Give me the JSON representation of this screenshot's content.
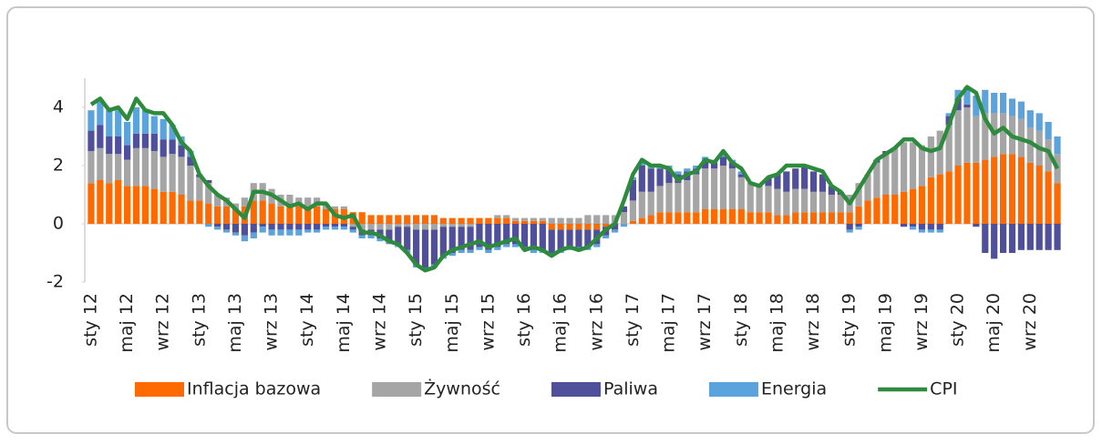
{
  "chart_data": {
    "type": "stacked-bar-line",
    "categories": [
      "sty 12",
      null,
      null,
      null,
      "maj 12",
      null,
      null,
      null,
      "wrz 12",
      null,
      null,
      null,
      "sty 13",
      null,
      null,
      null,
      "maj 13",
      null,
      null,
      null,
      "wrz 13",
      null,
      null,
      null,
      "sty 14",
      null,
      null,
      null,
      "maj 14",
      null,
      null,
      null,
      "wrz 14",
      null,
      null,
      null,
      "sty 15",
      null,
      null,
      null,
      "maj 15",
      null,
      null,
      null,
      "wrz 15",
      null,
      null,
      null,
      "sty 16",
      null,
      null,
      null,
      "maj 16",
      null,
      null,
      null,
      "wrz 16",
      null,
      null,
      null,
      "sty 17",
      null,
      null,
      null,
      "maj 17",
      null,
      null,
      null,
      "wrz 17",
      null,
      null,
      null,
      "sty 18",
      null,
      null,
      null,
      "maj 18",
      null,
      null,
      null,
      "wrz 18",
      null,
      null,
      null,
      "sty 19",
      null,
      null,
      null,
      "maj 19",
      null,
      null,
      null,
      "wrz 19",
      null,
      null,
      null,
      "sty 20",
      null,
      null,
      null,
      "maj 20",
      null,
      null,
      null,
      "wrz 20",
      null,
      null,
      null
    ],
    "series": [
      {
        "name": "Inflacja bazowa",
        "color": "#ff6a00",
        "kind": "bar",
        "values": [
          1.4,
          1.5,
          1.4,
          1.5,
          1.3,
          1.3,
          1.3,
          1.2,
          1.1,
          1.1,
          1.0,
          0.8,
          0.8,
          0.7,
          0.6,
          0.6,
          0.5,
          0.6,
          0.8,
          0.8,
          0.7,
          0.6,
          0.6,
          0.6,
          0.6,
          0.6,
          0.5,
          0.5,
          0.5,
          0.4,
          0.4,
          0.3,
          0.3,
          0.3,
          0.3,
          0.3,
          0.3,
          0.3,
          0.3,
          0.2,
          0.2,
          0.2,
          0.2,
          0.2,
          0.2,
          0.2,
          0.2,
          0.1,
          0.1,
          0.1,
          0.1,
          -0.2,
          -0.2,
          -0.2,
          -0.2,
          -0.2,
          -0.2,
          -0.1,
          0.0,
          0.0,
          0.1,
          0.2,
          0.3,
          0.4,
          0.4,
          0.4,
          0.4,
          0.4,
          0.5,
          0.5,
          0.5,
          0.5,
          0.5,
          0.4,
          0.4,
          0.4,
          0.3,
          0.3,
          0.4,
          0.4,
          0.4,
          0.4,
          0.4,
          0.4,
          0.4,
          0.6,
          0.8,
          0.9,
          1.0,
          1.0,
          1.1,
          1.2,
          1.3,
          1.6,
          1.7,
          1.8,
          2.0,
          2.1,
          2.1,
          2.2,
          2.3,
          2.4,
          2.4,
          2.3,
          2.1,
          2.0,
          1.8,
          1.4
        ]
      },
      {
        "name": "Żywność",
        "color": "#a5a5a5",
        "kind": "bar",
        "values": [
          1.1,
          1.1,
          1.0,
          0.9,
          0.9,
          1.3,
          1.3,
          1.3,
          1.2,
          1.3,
          1.3,
          1.2,
          0.8,
          0.7,
          0.4,
          0.3,
          0.2,
          0.3,
          0.6,
          0.6,
          0.5,
          0.4,
          0.4,
          0.3,
          0.3,
          0.3,
          0.2,
          0.1,
          0.1,
          -0.1,
          -0.2,
          -0.2,
          -0.2,
          -0.2,
          -0.1,
          -0.1,
          -0.2,
          -0.2,
          -0.2,
          -0.1,
          -0.1,
          -0.1,
          -0.1,
          0.0,
          0.0,
          0.1,
          0.1,
          0.1,
          0.1,
          0.1,
          0.1,
          0.2,
          0.2,
          0.2,
          0.2,
          0.3,
          0.3,
          0.3,
          0.3,
          0.4,
          0.7,
          0.9,
          0.8,
          0.9,
          1.0,
          1.0,
          1.1,
          1.3,
          1.4,
          1.4,
          1.5,
          1.4,
          1.1,
          1.0,
          0.9,
          0.9,
          0.9,
          0.8,
          0.8,
          0.8,
          0.7,
          0.7,
          0.6,
          0.6,
          0.6,
          0.8,
          0.9,
          1.2,
          1.4,
          1.6,
          1.7,
          1.6,
          1.4,
          1.4,
          1.5,
          1.6,
          1.9,
          1.9,
          1.6,
          1.6,
          1.5,
          1.4,
          1.3,
          1.3,
          1.2,
          1.2,
          1.1,
          1.0
        ]
      },
      {
        "name": "Paliwa",
        "color": "#4f4f9b",
        "kind": "bar",
        "values": [
          0.7,
          0.8,
          0.6,
          0.6,
          0.5,
          0.5,
          0.5,
          0.6,
          0.6,
          0.5,
          0.4,
          0.3,
          0.1,
          0.1,
          -0.1,
          -0.2,
          -0.3,
          -0.4,
          -0.3,
          -0.1,
          -0.2,
          -0.2,
          -0.2,
          -0.2,
          -0.2,
          -0.2,
          -0.1,
          -0.1,
          -0.1,
          -0.1,
          -0.2,
          -0.2,
          -0.3,
          -0.4,
          -0.6,
          -0.8,
          -1.2,
          -1.3,
          -1.2,
          -1.0,
          -0.9,
          -0.8,
          -0.8,
          -0.8,
          -0.9,
          -0.8,
          -0.7,
          -0.7,
          -0.8,
          -0.9,
          -0.9,
          -0.8,
          -0.7,
          -0.6,
          -0.6,
          -0.6,
          -0.5,
          -0.3,
          -0.2,
          0.2,
          0.7,
          0.9,
          0.8,
          0.6,
          0.5,
          0.3,
          0.3,
          0.2,
          0.3,
          0.2,
          0.3,
          0.2,
          0.1,
          0.0,
          0.0,
          0.3,
          0.5,
          0.7,
          0.7,
          0.8,
          0.7,
          0.6,
          0.3,
          0.1,
          -0.2,
          -0.1,
          0.0,
          0.1,
          0.1,
          0.0,
          -0.1,
          -0.1,
          -0.2,
          -0.2,
          -0.2,
          0.3,
          0.4,
          0.1,
          -0.1,
          -1.0,
          -1.2,
          -1.0,
          -1.0,
          -0.9,
          -0.9,
          -0.9,
          -0.9,
          -0.9
        ]
      },
      {
        "name": "Energia",
        "color": "#5ba3dc",
        "kind": "bar",
        "values": [
          0.7,
          0.8,
          0.9,
          0.9,
          0.8,
          0.9,
          0.8,
          0.6,
          0.7,
          0.5,
          0.3,
          0.2,
          0.0,
          -0.1,
          -0.1,
          -0.1,
          -0.1,
          -0.2,
          -0.2,
          -0.2,
          -0.2,
          -0.2,
          -0.2,
          -0.2,
          -0.1,
          -0.1,
          -0.1,
          -0.1,
          -0.1,
          -0.1,
          -0.1,
          -0.1,
          -0.1,
          -0.1,
          -0.1,
          -0.1,
          -0.1,
          -0.1,
          -0.1,
          -0.1,
          -0.1,
          -0.1,
          -0.1,
          -0.1,
          -0.1,
          -0.1,
          -0.1,
          -0.1,
          -0.1,
          -0.1,
          -0.1,
          -0.1,
          -0.1,
          -0.1,
          -0.1,
          -0.1,
          -0.1,
          -0.1,
          -0.1,
          -0.1,
          0.1,
          0.1,
          0.1,
          0.1,
          0.1,
          0.1,
          0.1,
          0.1,
          0.1,
          0.1,
          0.1,
          0.1,
          0.1,
          0.0,
          0.0,
          0.0,
          0.0,
          0.0,
          0.0,
          0.0,
          0.0,
          0.0,
          0.0,
          0.0,
          -0.1,
          -0.1,
          0.0,
          0.0,
          0.0,
          0.0,
          0.0,
          -0.1,
          -0.1,
          -0.1,
          -0.1,
          0.1,
          0.3,
          0.6,
          0.7,
          0.8,
          0.7,
          0.7,
          0.6,
          0.6,
          0.6,
          0.6,
          0.6,
          0.6
        ]
      },
      {
        "name": "CPI",
        "color": "#2e8b3e",
        "kind": "line",
        "values": [
          4.1,
          4.3,
          3.9,
          4.0,
          3.6,
          4.3,
          3.9,
          3.8,
          3.8,
          3.4,
          2.8,
          2.5,
          1.7,
          1.3,
          1.0,
          0.8,
          0.5,
          0.2,
          1.1,
          1.1,
          1.0,
          0.8,
          0.6,
          0.7,
          0.5,
          0.7,
          0.7,
          0.3,
          0.2,
          0.3,
          -0.3,
          -0.3,
          -0.4,
          -0.6,
          -0.7,
          -1.0,
          -1.4,
          -1.6,
          -1.5,
          -1.1,
          -0.9,
          -0.8,
          -0.7,
          -0.6,
          -0.8,
          -0.7,
          -0.6,
          -0.5,
          -0.9,
          -0.8,
          -0.9,
          -1.1,
          -0.9,
          -0.8,
          -0.9,
          -0.8,
          -0.5,
          -0.2,
          0.0,
          0.8,
          1.7,
          2.2,
          2.0,
          2.0,
          1.9,
          1.5,
          1.7,
          1.8,
          2.2,
          2.1,
          2.5,
          2.1,
          1.9,
          1.4,
          1.3,
          1.6,
          1.7,
          2.0,
          2.0,
          2.0,
          1.9,
          1.8,
          1.3,
          1.1,
          0.7,
          1.2,
          1.7,
          2.2,
          2.4,
          2.6,
          2.9,
          2.9,
          2.6,
          2.5,
          2.6,
          3.4,
          4.3,
          4.7,
          4.5,
          3.6,
          3.1,
          3.3,
          3.0,
          2.9,
          2.8,
          2.6,
          2.5,
          1.9
        ]
      }
    ],
    "ylim": [
      -2,
      5
    ],
    "yticks": [
      -2,
      0,
      2,
      4
    ],
    "legend": "bottom"
  }
}
